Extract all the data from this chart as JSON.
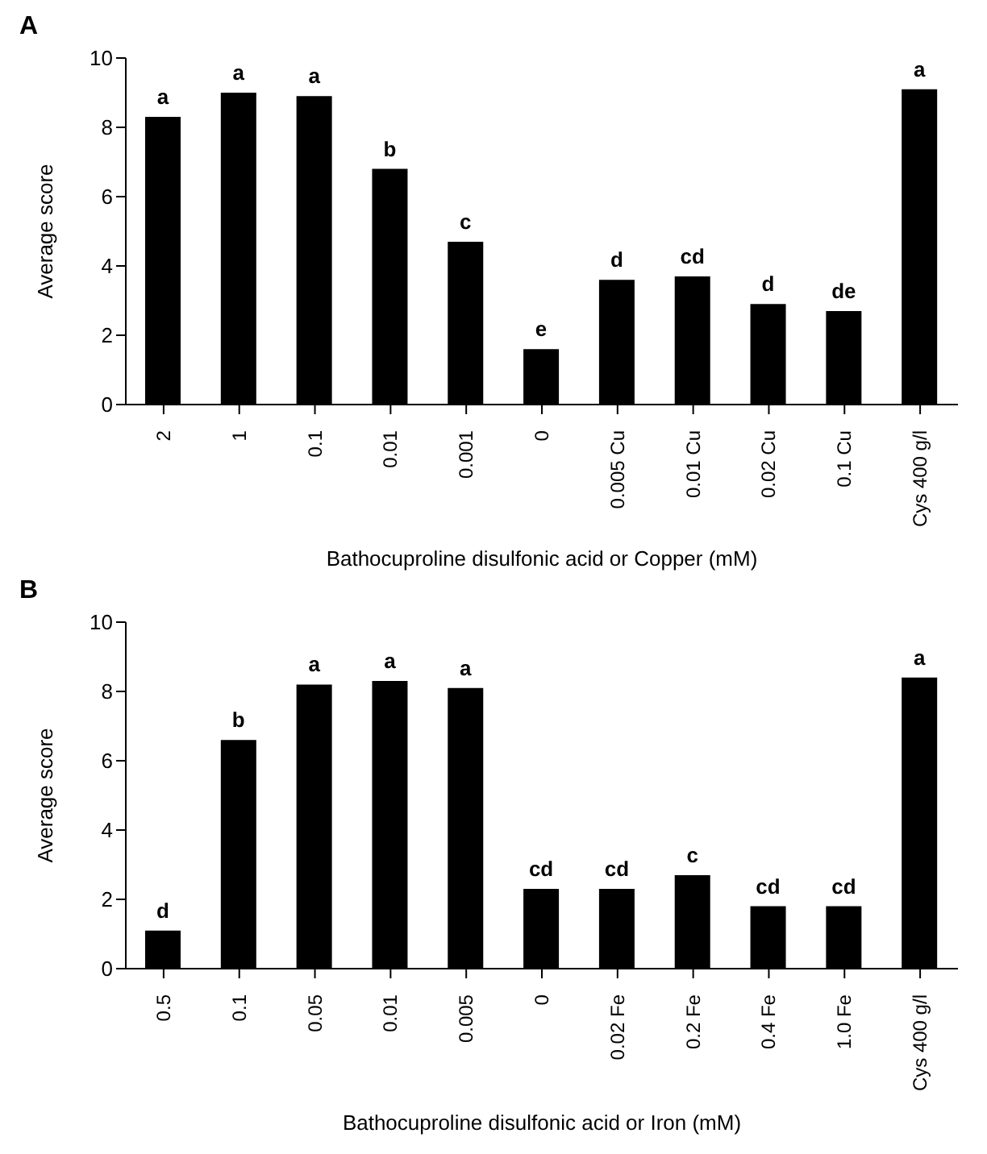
{
  "chart_data": [
    {
      "type": "bar",
      "title": "A",
      "xlabel": "Bathocuproline disulfonic acid or Copper (mM)",
      "ylabel": "Average score",
      "categories": [
        "2",
        "1",
        "0.1",
        "0.01",
        "0.001",
        "0",
        "0.005 Cu",
        "0.01 Cu",
        "0.02 Cu",
        "0.1 Cu",
        "Cys 400 g/l"
      ],
      "values": [
        8.3,
        9.0,
        8.9,
        6.8,
        4.7,
        1.6,
        3.6,
        3.7,
        2.9,
        2.7,
        9.1
      ],
      "color": "#000000",
      "value_labels": [
        "a",
        "a",
        "a",
        "b",
        "c",
        "e",
        "d",
        "cd",
        "d",
        "de",
        "a"
      ],
      "ylim": [
        0,
        10
      ],
      "yticks": [
        0,
        2,
        4,
        6,
        8,
        10
      ],
      "grid": false,
      "legend": false
    },
    {
      "type": "bar",
      "title": "B",
      "xlabel": "Bathocuproline disulfonic acid or Iron (mM)",
      "ylabel": "Average score",
      "categories": [
        "0.5",
        "0.1",
        "0.05",
        "0.01",
        "0.005",
        "0",
        "0.02 Fe",
        "0.2 Fe",
        "0.4 Fe",
        "1.0 Fe",
        "Cys 400 g/l"
      ],
      "values": [
        1.1,
        6.6,
        8.2,
        8.3,
        8.1,
        2.3,
        2.3,
        2.7,
        1.8,
        1.8,
        8.4
      ],
      "color": "#000000",
      "value_labels": [
        "d",
        "b",
        "a",
        "a",
        "a",
        "cd",
        "cd",
        "c",
        "cd",
        "cd",
        "a"
      ],
      "ylim": [
        0,
        10
      ],
      "yticks": [
        0,
        2,
        4,
        6,
        8,
        10
      ],
      "grid": false,
      "legend": false
    }
  ]
}
